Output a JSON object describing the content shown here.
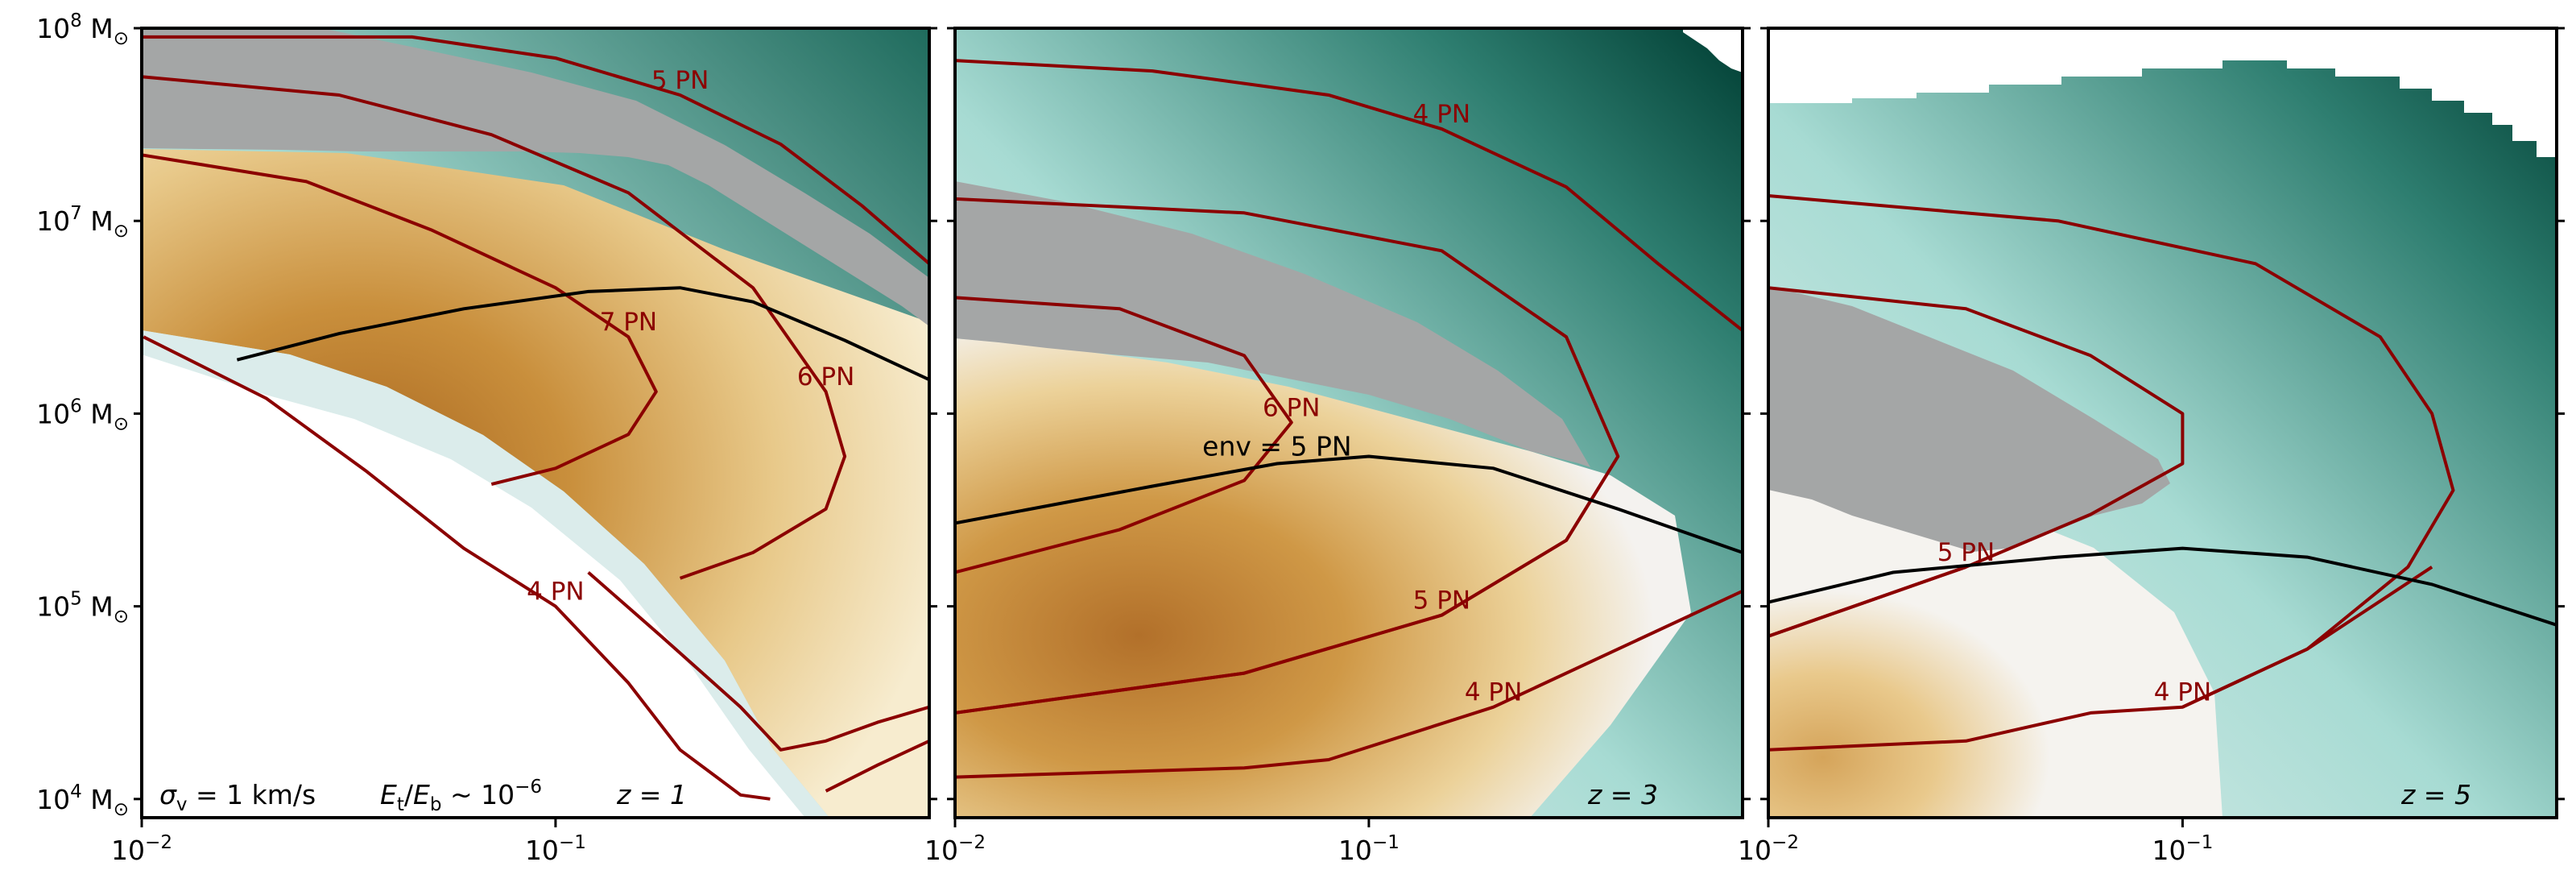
{
  "chart_data": {
    "type": "heatmap",
    "x_scale": "log",
    "y_scale": "log",
    "xlim": [
      0.01,
      0.8
    ],
    "ylim": [
      8000,
      100000000
    ],
    "colors": {
      "brown_scale": [
        "#f7eccf",
        "#e8c98a",
        "#c98f3c",
        "#a8661f"
      ],
      "teal_scale": [
        "#f0f3f2",
        "#a7dbd3",
        "#4fa596",
        "#003e33"
      ],
      "excluded_gray": "#a4a6a6",
      "pn_contours": "#8b0000",
      "env_contour": "#000000"
    },
    "y_ticks": [
      {
        "v": 10000,
        "base": "10",
        "exp": "4",
        "unit": " M",
        "sub": "⊙"
      },
      {
        "v": 100000,
        "base": "10",
        "exp": "5",
        "unit": " M",
        "sub": "⊙"
      },
      {
        "v": 1000000,
        "base": "10",
        "exp": "6",
        "unit": " M",
        "sub": "⊙"
      },
      {
        "v": 10000000,
        "base": "10",
        "exp": "7",
        "unit": " M",
        "sub": "⊙"
      },
      {
        "v": 100000000,
        "base": "10",
        "exp": "8",
        "unit": " M",
        "sub": "⊙"
      }
    ],
    "x_ticks": [
      {
        "v": 0.01,
        "base": "10",
        "exp": "−2"
      },
      {
        "v": 0.1,
        "base": "10",
        "exp": "−1"
      }
    ],
    "annotation": {
      "sigma": "σ",
      "sigma_sub": "v",
      "sigma_rest": " =  1 km/s",
      "E": "E",
      "E_sub1": "t",
      "slash": "/",
      "E_sub2": "b",
      "approx": " ~ 10",
      "approx_exp": "−6"
    },
    "panels": [
      {
        "z_label": "z = 1",
        "contours": [
          {
            "label": "4 PN",
            "points": [
              [
                0.0101,
                2500000.0
              ],
              [
                0.02,
                1200000.0
              ],
              [
                0.035,
                500000.0
              ],
              [
                0.06,
                200000.0
              ],
              [
                0.1,
                100000.0
              ],
              [
                0.15,
                40000.0
              ],
              [
                0.2,
                18000.0
              ],
              [
                0.28,
                10500.0
              ],
              [
                0.33,
                10000.0
              ]
            ]
          },
          {
            "label": "5 PN",
            "points": [
              [
                0.01,
                90000000.0
              ],
              [
                0.045,
                90000000.0
              ],
              [
                0.1,
                70000000.0
              ],
              [
                0.2,
                45000000.0
              ],
              [
                0.35,
                25000000.0
              ],
              [
                0.55,
                12000000.0
              ],
              [
                0.8,
                6000000.0
              ]
            ]
          },
          {
            "label": "6 PN",
            "points": [
              [
                0.01,
                56000000.0
              ],
              [
                0.03,
                45000000.0
              ],
              [
                0.07,
                28000000.0
              ],
              [
                0.15,
                14000000.0
              ],
              [
                0.3,
                4500000.0
              ],
              [
                0.45,
                1300000.0
              ],
              [
                0.5,
                600000.0
              ],
              [
                0.45,
                320000.0
              ],
              [
                0.3,
                190000.0
              ],
              [
                0.2,
                140000.0
              ]
            ]
          },
          {
            "label": "7 PN",
            "points": [
              [
                0.01,
                22000000.0
              ],
              [
                0.025,
                16000000.0
              ],
              [
                0.05,
                9000000.0
              ],
              [
                0.1,
                4500000.0
              ],
              [
                0.15,
                2500000.0
              ],
              [
                0.175,
                1300000.0
              ],
              [
                0.15,
                780000.0
              ],
              [
                0.1,
                520000.0
              ],
              [
                0.07,
                430000.0
              ]
            ]
          },
          {
            "label": "",
            "points": [
              [
                0.12,
                150000.0
              ],
              [
                0.18,
                70000.0
              ],
              [
                0.28,
                30000.0
              ],
              [
                0.35,
                18000.0
              ],
              [
                0.45,
                20000.0
              ],
              [
                0.6,
                25000.0
              ],
              [
                0.8,
                30000.0
              ]
            ]
          },
          {
            "label": "",
            "points": [
              [
                0.45,
                11000.0
              ],
              [
                0.6,
                15000.0
              ],
              [
                0.8,
                20000.0
              ]
            ]
          }
        ],
        "env_points": [
          [
            0.017,
            1900000.0
          ],
          [
            0.03,
            2600000.0
          ],
          [
            0.06,
            3500000.0
          ],
          [
            0.12,
            4300000.0
          ],
          [
            0.2,
            4500000.0
          ],
          [
            0.3,
            3800000.0
          ],
          [
            0.5,
            2400000.0
          ],
          [
            0.8,
            1500000.0
          ]
        ]
      },
      {
        "z_label": "z = 3",
        "contours": [
          {
            "label": "4 PN",
            "points": [
              [
                0.01,
                68000000.0
              ],
              [
                0.03,
                60000000.0
              ],
              [
                0.08,
                45000000.0
              ],
              [
                0.15,
                30000000.0
              ],
              [
                0.3,
                15000000.0
              ],
              [
                0.5,
                6000000.0
              ],
              [
                0.8,
                2700000.0
              ]
            ]
          },
          {
            "label": "6 PN",
            "points": [
              [
                0.01,
                4000000.0
              ],
              [
                0.025,
                3500000.0
              ],
              [
                0.05,
                2000000.0
              ],
              [
                0.065,
                900000.0
              ],
              [
                0.05,
                450000.0
              ],
              [
                0.025,
                250000.0
              ],
              [
                0.01,
                150000.0
              ]
            ]
          },
          {
            "label": "",
            "points": [
              [
                0.01,
                13000000.0
              ],
              [
                0.05,
                11000000.0
              ],
              [
                0.15,
                7000000.0
              ],
              [
                0.3,
                2500000.0
              ],
              [
                0.4,
                600000.0
              ],
              [
                0.3,
                220000.0
              ],
              [
                0.15,
                90000.0
              ],
              [
                0.05,
                45000.0
              ],
              [
                0.01,
                28000.0
              ]
            ]
          },
          {
            "label": "5 PN",
            "points": [
              [
                0.01,
                28000.0
              ],
              [
                0.05,
                45000.0
              ],
              [
                0.15,
                90000.0
              ],
              [
                0.3,
                220000.0
              ],
              [
                0.4,
                600000.0
              ]
            ]
          },
          {
            "label": "4 PN",
            "points": [
              [
                0.01,
                13000.0
              ],
              [
                0.05,
                14500.0
              ],
              [
                0.08,
                16000.0
              ],
              [
                0.2,
                30000.0
              ],
              [
                0.4,
                60000.0
              ],
              [
                0.8,
                120000.0
              ]
            ]
          }
        ],
        "env_label": "env = 5 PN",
        "env_points": [
          [
            0.01,
            270000.0
          ],
          [
            0.03,
            420000.0
          ],
          [
            0.06,
            550000.0
          ],
          [
            0.1,
            600000.0
          ],
          [
            0.2,
            520000.0
          ],
          [
            0.4,
            320000.0
          ],
          [
            0.8,
            190000.0
          ]
        ]
      },
      {
        "z_label": "z = 5",
        "contours": [
          {
            "label": "",
            "points": [
              [
                0.01,
                13500000.0
              ],
              [
                0.05,
                10000000.0
              ],
              [
                0.15,
                6000000.0
              ],
              [
                0.3,
                2500000.0
              ],
              [
                0.4,
                1000000.0
              ],
              [
                0.45,
                400000.0
              ],
              [
                0.35,
                160000.0
              ],
              [
                0.2,
                60000.0
              ],
              [
                0.1,
                30000.0
              ]
            ]
          },
          {
            "label": "",
            "points": [
              [
                0.01,
                4500000.0
              ],
              [
                0.03,
                3500000.0
              ],
              [
                0.06,
                2000000.0
              ],
              [
                0.1,
                1000000.0
              ],
              [
                0.1,
                550000.0
              ],
              [
                0.06,
                300000.0
              ],
              [
                0.03,
                160000.0
              ],
              [
                0.01,
                70000.0
              ]
            ]
          },
          {
            "label": "5 PN",
            "points": [
              [
                0.01,
                70000.0
              ],
              [
                0.03,
                160000.0
              ]
            ]
          },
          {
            "label": "4 PN",
            "points": [
              [
                0.01,
                18000.0
              ],
              [
                0.03,
                20000.0
              ],
              [
                0.06,
                28000.0
              ],
              [
                0.1,
                30000.0
              ],
              [
                0.2,
                60000.0
              ],
              [
                0.4,
                160000.0
              ]
            ]
          }
        ],
        "env_points": [
          [
            0.01,
            105000.0
          ],
          [
            0.02,
            150000.0
          ],
          [
            0.05,
            180000.0
          ],
          [
            0.1,
            200000.0
          ],
          [
            0.2,
            180000.0
          ],
          [
            0.4,
            130000.0
          ],
          [
            0.8,
            80000.0
          ]
        ]
      }
    ]
  }
}
